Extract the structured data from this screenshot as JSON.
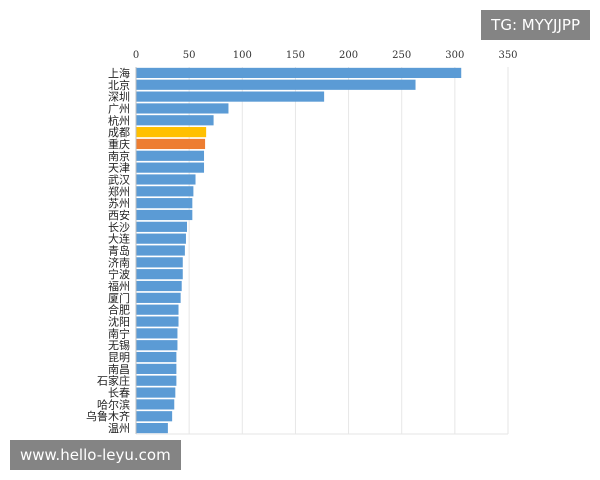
{
  "overlays": {
    "top_right": "TG: MYYJJPP",
    "bottom_left": "www.hello-leyu.com"
  },
  "colors": {
    "bar_default": "#5b9bd5",
    "bar_highlight_yellow": "#ffc000",
    "bar_highlight_orange": "#ed7d31",
    "grid": "#e6e6e6",
    "axis": "#bfbfbf"
  },
  "chart_data": {
    "type": "bar",
    "orientation": "horizontal",
    "x_axis_position": "top",
    "grid": true,
    "xlim": [
      0,
      350
    ],
    "xticks": [
      0,
      50,
      100,
      150,
      200,
      250,
      300,
      350
    ],
    "categories": [
      "上海",
      "北京",
      "深圳",
      "广州",
      "杭州",
      "成都",
      "重庆",
      "南京",
      "天津",
      "武汉",
      "郑州",
      "苏州",
      "西安",
      "长沙",
      "大连",
      "青岛",
      "济南",
      "宁波",
      "福州",
      "厦门",
      "合肥",
      "沈阳",
      "南宁",
      "无锡",
      "昆明",
      "南昌",
      "石家庄",
      "长春",
      "哈尔滨",
      "乌鲁木齐",
      "温州"
    ],
    "values": [
      306,
      263,
      177,
      87,
      73,
      66,
      65,
      64,
      64,
      56,
      54,
      53,
      53,
      48,
      47,
      46,
      44,
      44,
      43,
      42,
      40,
      40,
      39,
      39,
      38,
      38,
      38,
      37,
      36,
      34,
      30
    ],
    "highlights": {
      "成都": "#ffc000",
      "重庆": "#ed7d31"
    }
  }
}
